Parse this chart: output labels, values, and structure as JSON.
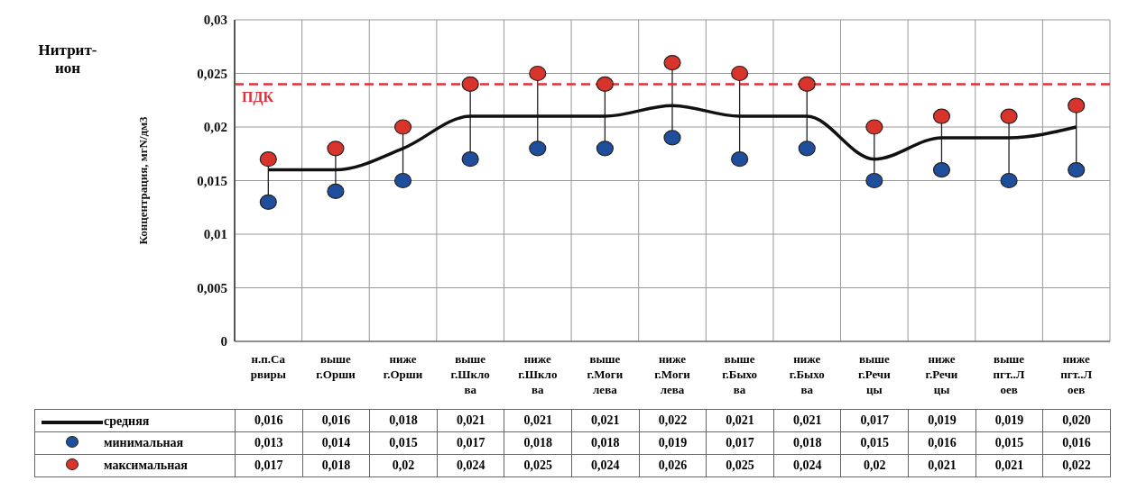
{
  "chart_data": {
    "type": "line",
    "title": "Нитрит-ион",
    "ylabel": "Концентрация, мгN/дм3",
    "categories": [
      "н.п.Сарвиры",
      "выше г.Орши",
      "ниже г.Орши",
      "выше г.Шклова",
      "ниже г.Шклова",
      "выше г.Могилева",
      "ниже г.Могилева",
      "выше г.Быхова",
      "ниже г.Быхова",
      "выше г.Речицы",
      "ниже г.Речицы",
      "выше пгт..Лоев",
      "ниже пгт..Лоев"
    ],
    "series": [
      {
        "name": "средняя",
        "type": "line",
        "marker": "none",
        "color": "#111111",
        "values": [
          0.016,
          0.016,
          0.018,
          0.021,
          0.021,
          0.021,
          0.022,
          0.021,
          0.021,
          0.017,
          0.019,
          0.019,
          0.02
        ],
        "value_labels": [
          "0,016",
          "0,016",
          "0,018",
          "0,021",
          "0,021",
          "0,021",
          "0,022",
          "0,021",
          "0,021",
          "0,017",
          "0,019",
          "0,019",
          "0,020"
        ]
      },
      {
        "name": "минимальная",
        "type": "scatter",
        "marker": "circle",
        "color": "#1f4e9c",
        "values": [
          0.013,
          0.014,
          0.015,
          0.017,
          0.018,
          0.018,
          0.019,
          0.017,
          0.018,
          0.015,
          0.016,
          0.015,
          0.016
        ],
        "value_labels": [
          "0,013",
          "0,014",
          "0,015",
          "0,017",
          "0,018",
          "0,018",
          "0,019",
          "0,017",
          "0,018",
          "0,015",
          "0,016",
          "0,015",
          "0,016"
        ]
      },
      {
        "name": "максимальная",
        "type": "scatter",
        "marker": "circle",
        "color": "#d9342b",
        "values": [
          0.017,
          0.018,
          0.02,
          0.024,
          0.025,
          0.024,
          0.026,
          0.025,
          0.024,
          0.02,
          0.021,
          0.021,
          0.022
        ],
        "value_labels": [
          "0,017",
          "0,018",
          "0,02",
          "0,024",
          "0,025",
          "0,024",
          "0,026",
          "0,025",
          "0,024",
          "0,02",
          "0,021",
          "0,021",
          "0,022"
        ]
      }
    ],
    "ylim": [
      0,
      0.03
    ],
    "yticks": [
      0,
      {
        "value": 0.005,
        "label": "0,005"
      },
      {
        "value": 0.01,
        "label": "0,01"
      },
      {
        "value": 0.015,
        "label": "0,015"
      },
      {
        "value": 0.02,
        "label": "0,02"
      },
      {
        "value": 0.025,
        "label": "0,025"
      },
      {
        "value": 0.03,
        "label": "0,03"
      }
    ],
    "ref_lines": [
      {
        "axis": "y",
        "value": 0.024,
        "label": "ПДК",
        "color": "#e0303a",
        "line_style": "dashed"
      }
    ],
    "grid": true,
    "legend": "bottom",
    "line_style": "solid"
  }
}
